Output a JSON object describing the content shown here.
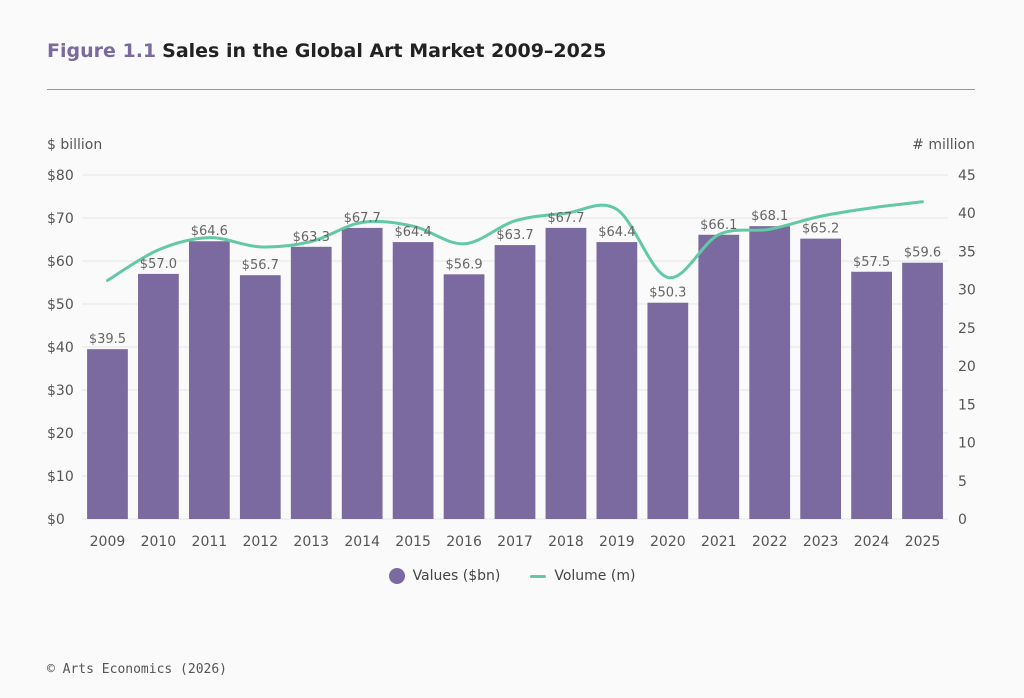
{
  "figure_label": "Figure 1.1",
  "title": "Sales in the Global Art Market 2009–2025",
  "source": "© Arts Economics (2026)",
  "colors": {
    "bar": "#7b6aa0",
    "line": "#63c9a4",
    "accent": "#7b6aa0",
    "grid": "#e6e6e6"
  },
  "chart_data": {
    "type": "bar",
    "categories": [
      "2009",
      "2010",
      "2011",
      "2012",
      "2013",
      "2014",
      "2015",
      "2016",
      "2017",
      "2018",
      "2019",
      "2020",
      "2021",
      "2022",
      "2023",
      "2024",
      "2025"
    ],
    "series": [
      {
        "name": "Values ($bn)",
        "type": "bar",
        "axis": "left",
        "values": [
          39.5,
          57.0,
          64.6,
          56.7,
          63.3,
          67.7,
          64.4,
          56.9,
          63.7,
          67.7,
          64.4,
          50.3,
          66.1,
          68.1,
          65.2,
          57.5,
          59.6
        ],
        "labels": [
          "$39.5",
          "$57.0",
          "$64.6",
          "$56.7",
          "$63.3",
          "$67.7",
          "$64.4",
          "$56.9",
          "$63.7",
          "$67.7",
          "$64.4",
          "$50.3",
          "$66.1",
          "$68.1",
          "$65.2",
          "$57.5",
          "$59.6"
        ]
      },
      {
        "name": "Volume (m)",
        "type": "line",
        "axis": "right",
        "values": [
          31.2,
          35.2,
          36.8,
          35.6,
          36.3,
          38.8,
          38.3,
          36.0,
          39.0,
          40.0,
          40.5,
          31.6,
          37.2,
          37.9,
          39.6,
          40.7,
          41.5
        ]
      }
    ],
    "ylabel_left": "$ billion",
    "ylabel_right": "# million",
    "ylim_left": [
      0,
      80
    ],
    "ylim_right": [
      0,
      45
    ],
    "yticks_left": [
      "$0",
      "$10",
      "$20",
      "$30",
      "$40",
      "$50",
      "$60",
      "$70",
      "$80"
    ],
    "yticks_right": [
      "0",
      "5",
      "10",
      "15",
      "20",
      "25",
      "30",
      "35",
      "40",
      "45"
    ],
    "grid": true,
    "legend_position": "bottom-center"
  }
}
